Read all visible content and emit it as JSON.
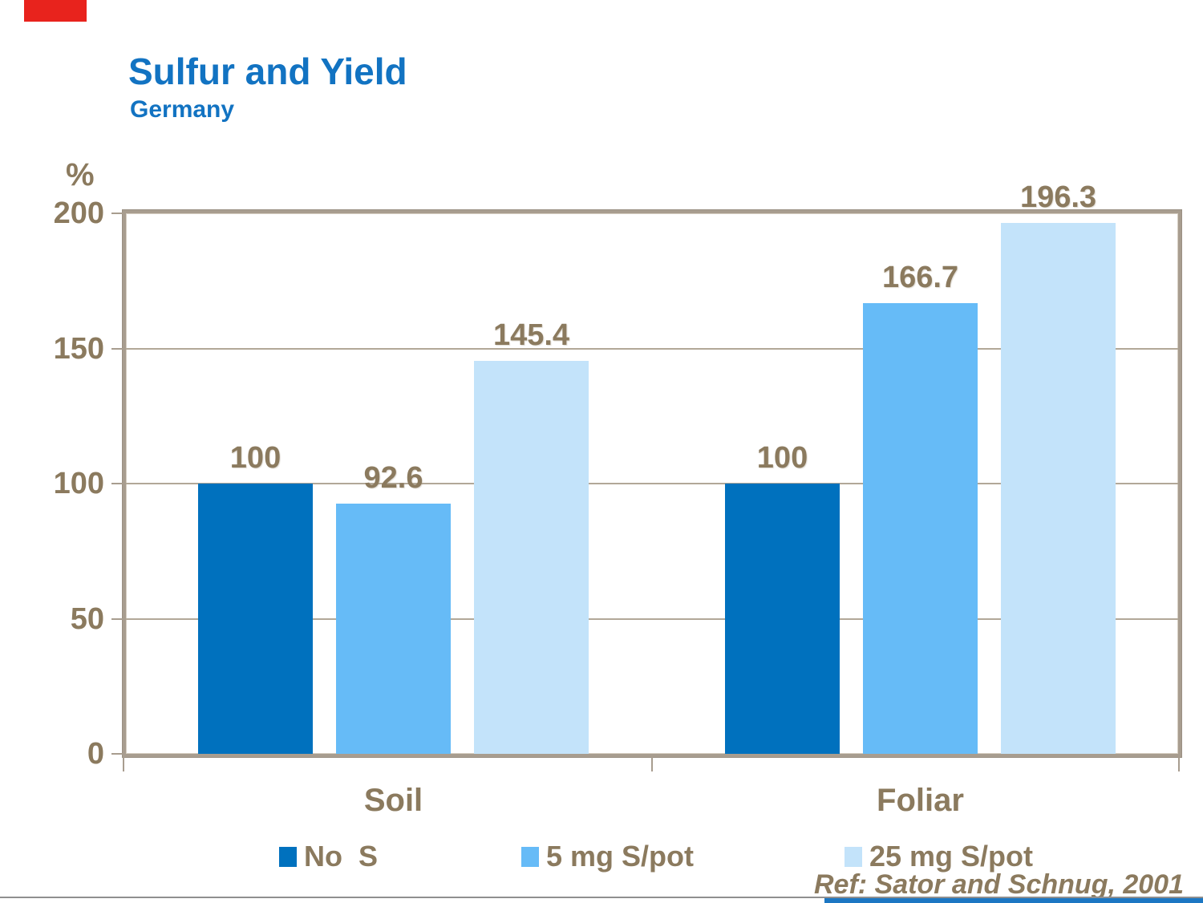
{
  "slide": {
    "title": "Sulfur and Yield",
    "subtitle": "Germany",
    "reference": "Ref: Sator and Schnug, 2001"
  },
  "chart_data": {
    "type": "bar",
    "title": "Sulfur and Yield",
    "subtitle": "Germany",
    "ylabel": "%",
    "xlabel": "",
    "ylim": [
      0,
      200
    ],
    "yticks": [
      0,
      50,
      100,
      150,
      200
    ],
    "grid": "horizontal",
    "legend_position": "bottom",
    "categories": [
      "Soil",
      "Foliar"
    ],
    "series": [
      {
        "name": "No  S",
        "color": "#0071BE",
        "values": [
          100,
          100
        ]
      },
      {
        "name": "5 mg S/pot",
        "color": "#66BBF7",
        "values": [
          92.6,
          166.7
        ]
      },
      {
        "name": "25 mg S/pot",
        "color": "#C3E3FA",
        "values": [
          145.4,
          196.3
        ]
      }
    ],
    "bar_value_labels": [
      "100",
      "92.6",
      "145.4",
      "100",
      "166.7",
      "196.3"
    ]
  },
  "colors": {
    "title_blue": "#1273C2",
    "text_brown": "#8B7A5E",
    "frame_tan": "#A89D8F",
    "grid_tan": "#B2A898",
    "top_accent_red": "#E8231D",
    "bottom_accent_blue": "#1C77C3",
    "bottom_line_gray": "#8F8F8F"
  }
}
